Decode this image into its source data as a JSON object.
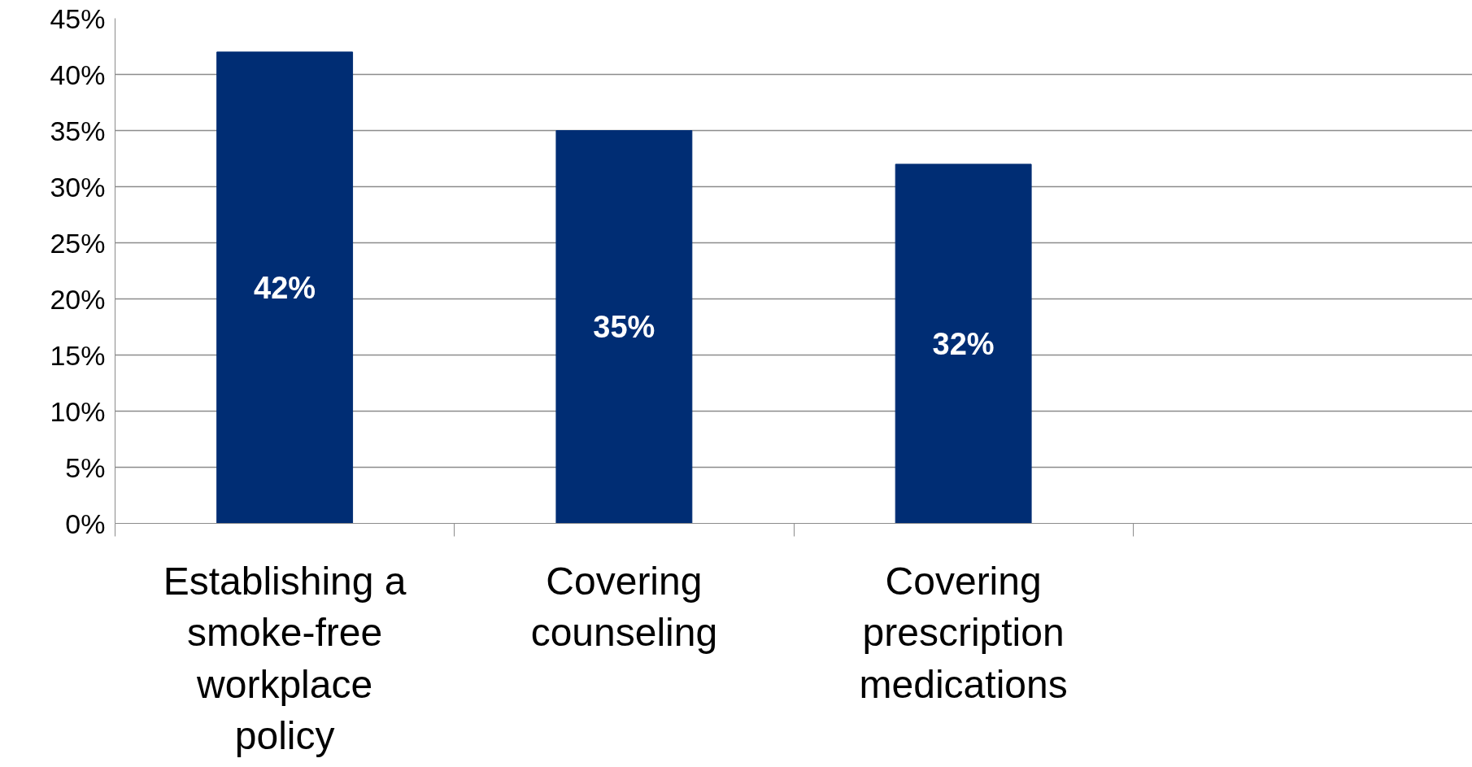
{
  "chart_data": {
    "type": "bar",
    "categories": [
      "Establishing a smoke-free workplace policy",
      "Covering counseling",
      "Covering prescription medications",
      null
    ],
    "values": [
      42,
      35,
      32,
      null
    ],
    "color": "#002d74",
    "value_labels": [
      "42%",
      "35%",
      "32%",
      null
    ],
    "ylim": [
      0,
      45
    ],
    "yticks": [
      {
        "value": 0,
        "label": "0%"
      },
      {
        "value": 5,
        "label": "5%"
      },
      {
        "value": 10,
        "label": "10%"
      },
      {
        "value": 15,
        "label": "15%"
      },
      {
        "value": 20,
        "label": "20%"
      },
      {
        "value": 25,
        "label": "25%"
      },
      {
        "value": 30,
        "label": "30%"
      },
      {
        "value": 35,
        "label": "35%"
      },
      {
        "value": 40,
        "label": "40%"
      },
      {
        "value": 45,
        "label": "45%"
      }
    ],
    "grid": "y"
  }
}
